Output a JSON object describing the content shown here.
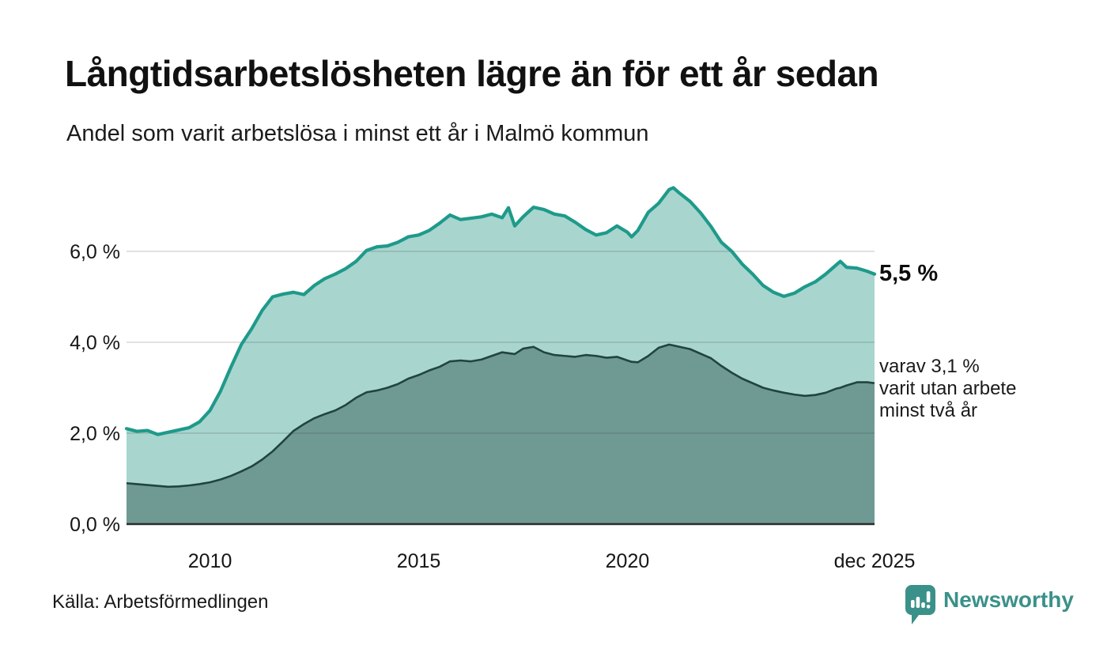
{
  "header": {
    "title": "Långtidsarbetslösheten lägre än för ett år sedan",
    "subtitle": "Andel som varit arbetslösa i minst ett år i Malmö kommun"
  },
  "chart_data": {
    "type": "area",
    "title": "Långtidsarbetslösheten lägre än för ett år sedan",
    "subtitle": "Andel som varit arbetslösa i minst ett år i Malmö kommun",
    "unit": "%",
    "x_range": [
      2008.0,
      2025.92
    ],
    "ylim": [
      0,
      7.6
    ],
    "grid": true,
    "legend_position": "right-annotations",
    "x": [
      2008.0,
      2008.25,
      2008.5,
      2008.75,
      2009.0,
      2009.25,
      2009.5,
      2009.75,
      2010.0,
      2010.25,
      2010.5,
      2010.75,
      2011.0,
      2011.25,
      2011.5,
      2011.75,
      2012.0,
      2012.25,
      2012.5,
      2012.75,
      2013.0,
      2013.25,
      2013.5,
      2013.75,
      2014.0,
      2014.25,
      2014.5,
      2014.75,
      2015.0,
      2015.25,
      2015.5,
      2015.75,
      2016.0,
      2016.25,
      2016.5,
      2016.75,
      2017.0,
      2017.15,
      2017.3,
      2017.5,
      2017.75,
      2018.0,
      2018.25,
      2018.5,
      2018.75,
      2019.0,
      2019.25,
      2019.5,
      2019.75,
      2020.0,
      2020.1,
      2020.25,
      2020.5,
      2020.75,
      2021.0,
      2021.1,
      2021.25,
      2021.5,
      2021.75,
      2022.0,
      2022.25,
      2022.5,
      2022.75,
      2023.0,
      2023.25,
      2023.5,
      2023.75,
      2024.0,
      2024.25,
      2024.5,
      2024.75,
      2025.0,
      2025.1,
      2025.25,
      2025.5,
      2025.75,
      2025.92
    ],
    "series": [
      {
        "name": "Arbetslösa minst ett år",
        "end_value": 5.5,
        "values": [
          2.1,
          2.04,
          2.06,
          1.97,
          2.02,
          2.07,
          2.12,
          2.25,
          2.5,
          2.92,
          3.45,
          3.95,
          4.3,
          4.7,
          5.0,
          5.06,
          5.1,
          5.05,
          5.25,
          5.4,
          5.5,
          5.62,
          5.78,
          6.02,
          6.1,
          6.12,
          6.2,
          6.32,
          6.36,
          6.46,
          6.62,
          6.8,
          6.7,
          6.73,
          6.76,
          6.82,
          6.74,
          6.96,
          6.56,
          6.76,
          6.97,
          6.92,
          6.82,
          6.78,
          6.64,
          6.48,
          6.36,
          6.41,
          6.56,
          6.42,
          6.32,
          6.46,
          6.86,
          7.06,
          7.36,
          7.4,
          7.28,
          7.1,
          6.85,
          6.55,
          6.2,
          6.0,
          5.72,
          5.5,
          5.25,
          5.1,
          5.01,
          5.08,
          5.22,
          5.33,
          5.5,
          5.7,
          5.78,
          5.65,
          5.63,
          5.56,
          5.5
        ]
      },
      {
        "name": "Arbetslösa minst två år",
        "end_value": 3.1,
        "values": [
          0.9,
          0.88,
          0.86,
          0.84,
          0.82,
          0.83,
          0.85,
          0.88,
          0.92,
          0.98,
          1.06,
          1.16,
          1.27,
          1.42,
          1.6,
          1.82,
          2.05,
          2.2,
          2.33,
          2.42,
          2.5,
          2.62,
          2.78,
          2.9,
          2.94,
          3.0,
          3.08,
          3.2,
          3.28,
          3.38,
          3.46,
          3.58,
          3.6,
          3.58,
          3.62,
          3.7,
          3.78,
          3.76,
          3.74,
          3.86,
          3.9,
          3.78,
          3.72,
          3.7,
          3.68,
          3.72,
          3.7,
          3.66,
          3.68,
          3.6,
          3.57,
          3.56,
          3.7,
          3.88,
          3.95,
          3.93,
          3.9,
          3.85,
          3.75,
          3.65,
          3.48,
          3.33,
          3.2,
          3.1,
          3.0,
          2.94,
          2.89,
          2.85,
          2.82,
          2.84,
          2.89,
          2.98,
          3.0,
          3.05,
          3.12,
          3.12,
          3.1
        ]
      }
    ],
    "yticks": [
      {
        "value": 0,
        "label": "0,0 %"
      },
      {
        "value": 2,
        "label": "2,0 %"
      },
      {
        "value": 4,
        "label": "4,0 %"
      },
      {
        "value": 6,
        "label": "6,0 %"
      }
    ],
    "xticks": [
      {
        "value": 2010,
        "label": "2010"
      },
      {
        "value": 2015,
        "label": "2015"
      },
      {
        "value": 2020,
        "label": "2020"
      },
      {
        "value": 2025.92,
        "label": "dec 2025"
      }
    ],
    "colors": {
      "line_light": "#1e9a8a",
      "line_dark": "#21443e",
      "area_light": "#a9d5cf",
      "area_dark": "#6f9a93",
      "grid": "rgba(40,40,40,0.14)",
      "baseline": "#2b2b2b"
    }
  },
  "annotations": {
    "total_label": "5,5 %",
    "sub_line1": "varav 3,1 %",
    "sub_line2": "varit utan arbete",
    "sub_line3": "minst två år"
  },
  "footer": {
    "source": "Källa: Arbetsförmedlingen",
    "brand": "Newsworthy",
    "brand_color": "#3a9189"
  }
}
